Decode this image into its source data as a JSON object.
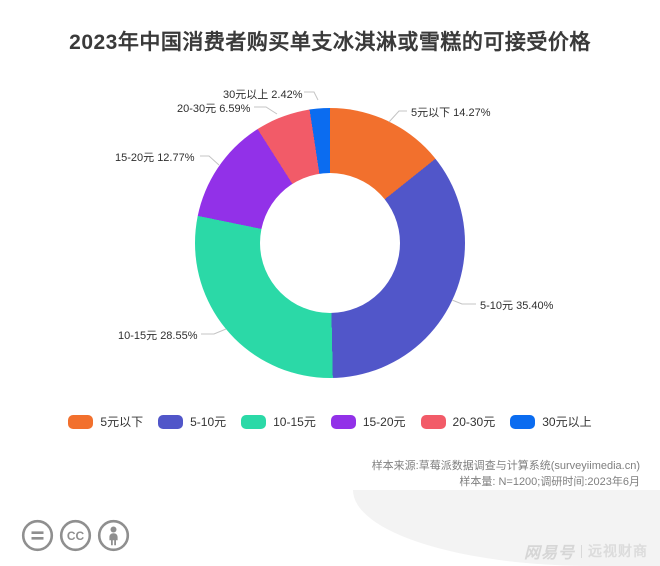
{
  "title": "2023年中国消费者购买单支冰淇淋或雪糕的可接受价格",
  "chart_data": {
    "type": "pie",
    "variant": "donut",
    "title": "2023年中国消费者购买单支冰淇淋或雪糕的可接受价格",
    "categories": [
      "5元以下",
      "5-10元",
      "10-15元",
      "15-20元",
      "20-30元",
      "30元以上"
    ],
    "values": [
      14.27,
      35.4,
      28.55,
      12.77,
      6.59,
      2.42
    ],
    "unit": "%",
    "colors": [
      "#F2702D",
      "#5156C9",
      "#2BD9A7",
      "#9231E8",
      "#F25B68",
      "#0B6CF0"
    ],
    "callout_labels": [
      "5元以下 14.27%",
      "5-10元 35.40%",
      "10-15元 28.55%",
      "15-20元 12.77%",
      "20-30元 6.59%",
      "30元以上 2.42%"
    ],
    "legend_position": "bottom",
    "start_angle_deg": 0,
    "direction": "clockwise"
  },
  "footnotes": {
    "source": "样本来源:草莓派数据调查与计算系统(surveyiimedia.cn)",
    "sample": "样本量: N=1200;调研时间:2023年6月"
  },
  "watermark": {
    "brand": "网易号",
    "account": "远视财商"
  },
  "license": {
    "icons": [
      "equals-icon",
      "cc-icon",
      "person-icon"
    ]
  }
}
